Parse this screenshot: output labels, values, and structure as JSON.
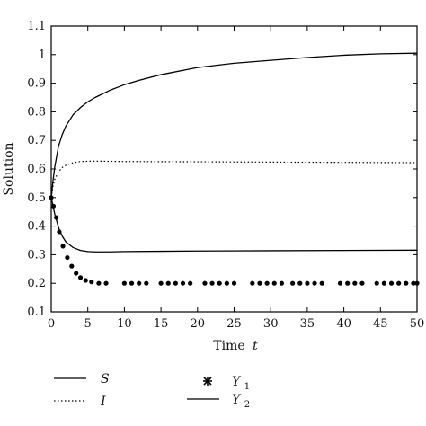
{
  "chart_data": {
    "type": "line",
    "xlabel": "Time",
    "xlabel_var": "t",
    "ylabel": "Solution",
    "xlim": [
      0,
      50
    ],
    "ylim": [
      0.1,
      1.1
    ],
    "xticks": [
      "0",
      "5",
      "10",
      "15",
      "20",
      "25",
      "30",
      "35",
      "40",
      "45",
      "50"
    ],
    "yticks": [
      "0.1",
      "0.2",
      "0.3",
      "0.4",
      "0.5",
      "0.6",
      "0.7",
      "0.8",
      "0.9",
      "1",
      "1.1"
    ],
    "grid": false,
    "legend_position": "bottom",
    "series": [
      {
        "name": "S",
        "style": "solid",
        "x": [
          0,
          0.25,
          0.5,
          1,
          1.5,
          2,
          3,
          4,
          5,
          6,
          8,
          10,
          12,
          15,
          20,
          25,
          30,
          35,
          40,
          45,
          50
        ],
        "y": [
          0.5,
          0.56,
          0.61,
          0.68,
          0.72,
          0.75,
          0.79,
          0.815,
          0.835,
          0.85,
          0.875,
          0.895,
          0.91,
          0.93,
          0.955,
          0.97,
          0.98,
          0.99,
          0.998,
          1.003,
          1.005
        ]
      },
      {
        "name": "I",
        "style": "dotted",
        "x": [
          0,
          0.25,
          0.5,
          1,
          1.5,
          2,
          3,
          4,
          5,
          7,
          10,
          20,
          30,
          40,
          50
        ],
        "y": [
          0.5,
          0.54,
          0.565,
          0.59,
          0.605,
          0.613,
          0.622,
          0.626,
          0.627,
          0.627,
          0.626,
          0.625,
          0.624,
          0.623,
          0.622
        ]
      },
      {
        "name": "Y",
        "sub": "1",
        "style": "markers",
        "x": [
          0,
          0.3,
          0.7,
          1.1,
          1.6,
          2.2,
          2.8,
          3.4,
          4,
          4.7,
          5.5,
          6.5,
          7.5,
          10,
          11,
          12,
          13,
          15,
          16,
          17,
          18,
          19,
          21,
          22,
          23,
          24,
          25,
          27.5,
          28.5,
          29.5,
          30.5,
          31.5,
          33,
          34,
          35,
          36,
          37,
          39.5,
          40.5,
          41.5,
          42.5,
          44.5,
          45.5,
          46.5,
          47.5,
          48.5,
          49.5,
          50
        ],
        "y": [
          0.5,
          0.47,
          0.43,
          0.38,
          0.33,
          0.29,
          0.26,
          0.235,
          0.22,
          0.21,
          0.205,
          0.2,
          0.2,
          0.2,
          0.2,
          0.2,
          0.2,
          0.2,
          0.2,
          0.2,
          0.2,
          0.2,
          0.2,
          0.2,
          0.2,
          0.2,
          0.2,
          0.2,
          0.2,
          0.2,
          0.2,
          0.2,
          0.2,
          0.2,
          0.2,
          0.2,
          0.2,
          0.2,
          0.2,
          0.2,
          0.2,
          0.2,
          0.2,
          0.2,
          0.2,
          0.2,
          0.2,
          0.2
        ]
      },
      {
        "name": "Y",
        "sub": "2",
        "style": "solid",
        "x": [
          0,
          0.5,
          1,
          1.5,
          2,
          3,
          4,
          5,
          6,
          8,
          10,
          15,
          20,
          30,
          40,
          50
        ],
        "y": [
          0.5,
          0.44,
          0.395,
          0.365,
          0.345,
          0.325,
          0.315,
          0.311,
          0.31,
          0.31,
          0.311,
          0.312,
          0.313,
          0.314,
          0.315,
          0.316
        ]
      }
    ]
  }
}
